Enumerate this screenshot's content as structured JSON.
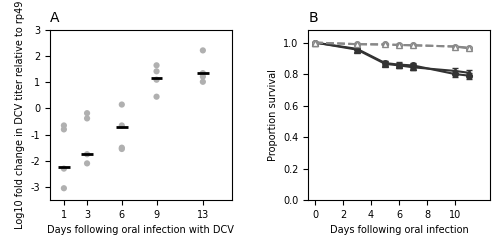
{
  "chart_data": [
    {
      "type": "scatter",
      "title": "A",
      "x_label": "Days following oral infection with DCV",
      "y_label": "Log10 fold change in DCV titer relative to rp49",
      "xlim": [
        -0.2,
        15.5
      ],
      "xticks": [
        1,
        3,
        6,
        9,
        13
      ],
      "ylim": [
        -3.5,
        3.0
      ],
      "yticks": [
        -3,
        -2,
        -1,
        0,
        1,
        2,
        3
      ],
      "series": [
        {
          "x": [
            1,
            1,
            1,
            1,
            3,
            3,
            3,
            3,
            6,
            6,
            6,
            6,
            9,
            9,
            9,
            9,
            13,
            13,
            13,
            13
          ],
          "values": [
            -2.3,
            -0.65,
            -0.8,
            -3.05,
            -0.18,
            -0.38,
            -1.75,
            -2.1,
            0.15,
            -0.65,
            -1.5,
            -1.55,
            1.65,
            1.1,
            1.42,
            0.45,
            1.35,
            1.02,
            1.22,
            2.22
          ],
          "color": "#b0b0b0",
          "marker": "circle"
        },
        {
          "x": [
            1,
            3,
            6,
            9,
            13
          ],
          "values": [
            -2.25,
            -1.75,
            -0.72,
            1.15,
            1.35
          ],
          "color": "#000000",
          "marker": "hline"
        }
      ]
    },
    {
      "type": "line",
      "title": "B",
      "x_label": "Days following oral infection",
      "y_label": "Proportion survival",
      "xlim": [
        -0.5,
        12.5
      ],
      "xticks": [
        0,
        2,
        4,
        6,
        8,
        10
      ],
      "ylim": [
        0.0,
        1.08
      ],
      "yticks": [
        0.0,
        0.2,
        0.4,
        0.6,
        0.8,
        1.0
      ],
      "x": [
        0,
        3,
        5,
        6,
        7,
        10,
        11
      ],
      "series": [
        {
          "values": [
            1.0,
            0.96,
            0.87,
            0.86,
            0.855,
            0.8,
            0.79
          ],
          "errors": [
            0.0,
            0.01,
            0.015,
            0.015,
            0.015,
            0.02,
            0.02
          ],
          "color": "#333333",
          "marker": "circle",
          "line_style": "solid"
        },
        {
          "values": [
            1.0,
            0.955,
            0.865,
            0.855,
            0.843,
            0.82,
            0.808
          ],
          "errors": [
            0.0,
            0.012,
            0.015,
            0.015,
            0.015,
            0.018,
            0.02
          ],
          "color": "#333333",
          "marker": "triangle",
          "line_style": "solid"
        },
        {
          "values": [
            1.0,
            0.99,
            0.988,
            0.985,
            0.983,
            0.975,
            0.968
          ],
          "errors": [
            0.0,
            0.004,
            0.004,
            0.004,
            0.004,
            0.006,
            0.007
          ],
          "color": "#888888",
          "marker": "open_circle",
          "line_style": "dashed"
        },
        {
          "values": [
            1.0,
            0.99,
            0.988,
            0.985,
            0.983,
            0.975,
            0.963
          ],
          "errors": [
            0.0,
            0.004,
            0.004,
            0.004,
            0.004,
            0.006,
            0.007
          ],
          "color": "#888888",
          "marker": "open_triangle",
          "line_style": "dashed"
        }
      ]
    }
  ]
}
